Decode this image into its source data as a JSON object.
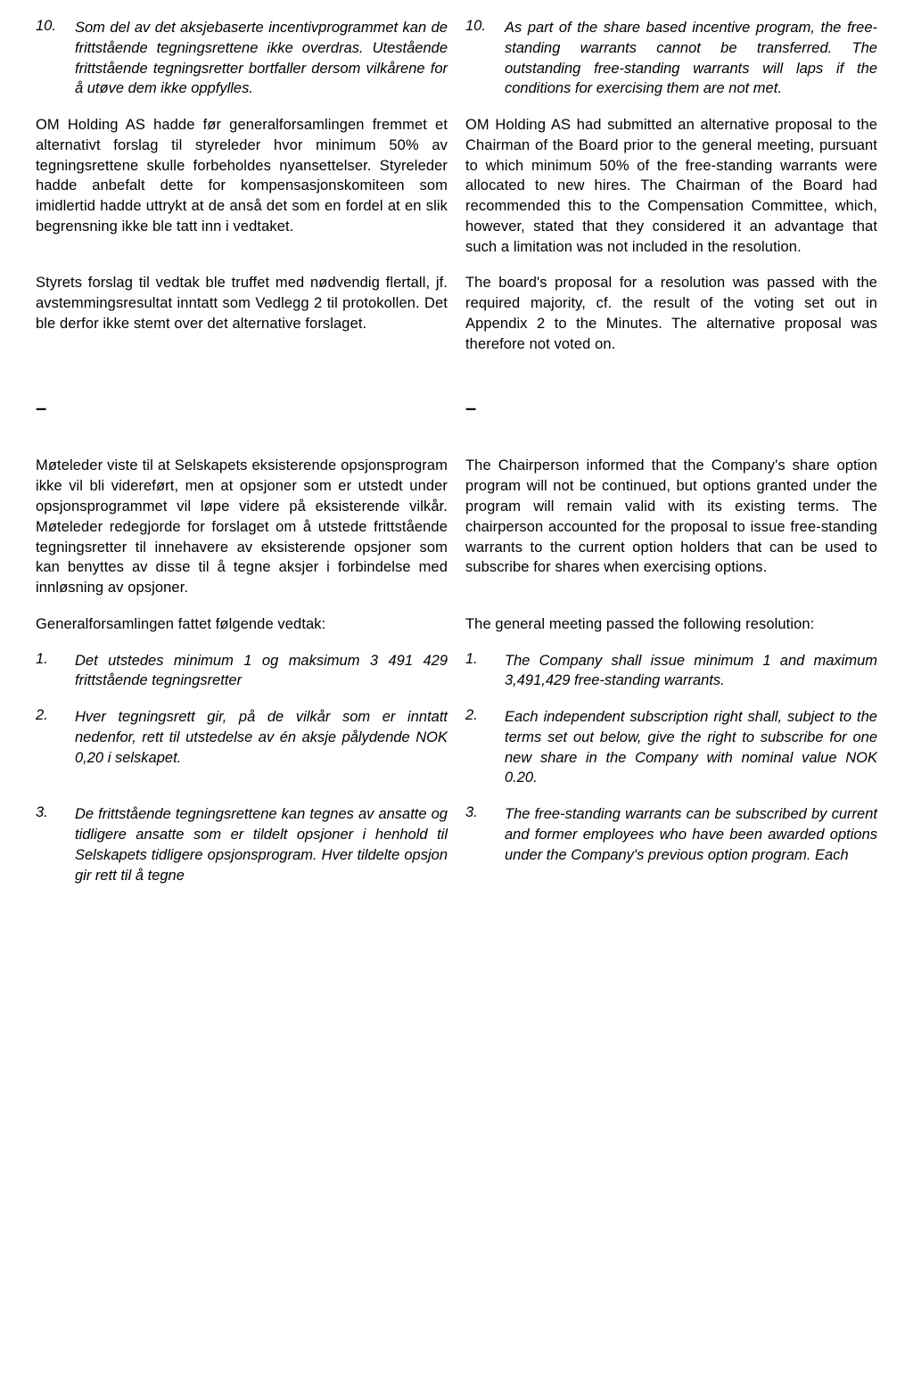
{
  "left": {
    "item10_num": "10.",
    "item10": "Som del av det aksjebaserte incentivprogrammet kan de frittstående tegningsrettene ikke overdras. Utestående frittstående tegningsretter bortfaller dersom vilkårene for å utøve dem ikke oppfylles.",
    "p1": "OM Holding AS hadde før generalforsamlingen fremmet et alternativt forslag til styreleder hvor minimum 50% av tegningsrettene skulle forbeholdes nyansettelser. Styreleder hadde anbefalt dette for kompensasjonskomiteen som imidlertid hadde uttrykt at de anså det som en fordel at en slik begrensning ikke ble tatt inn i vedtaket.",
    "p2": "Styrets forslag til vedtak ble truffet med nødvendig flertall, jf. avstemmingsresultat inntatt som Vedlegg 2 til protokollen. Det ble derfor ikke stemt over det alternative forslaget.",
    "dash": "–",
    "p3": "Møteleder viste til at Selskapets eksisterende opsjonsprogram ikke vil bli videreført, men at opsjoner som er utstedt under opsjonsprogrammet vil løpe videre på eksisterende vilkår. Møteleder redegjorde for forslaget om å utstede frittstående tegningsretter til innehavere av eksisterende opsjoner som kan benyttes av disse til å tegne aksjer i forbindelse med innløsning av opsjoner.",
    "p4": "Generalforsamlingen fattet følgende vedtak:",
    "item1_num": "1.",
    "item1": "Det utstedes minimum 1 og maksimum 3 491 429 frittstående tegningsretter",
    "item2_num": "2.",
    "item2": "Hver tegningsrett gir, på de vilkår som er inntatt nedenfor, rett til utstedelse av én aksje pålydende NOK 0,20 i selskapet.",
    "item3_num": "3.",
    "item3": "De frittstående tegningsrettene kan tegnes av ansatte og tidligere ansatte som er tildelt opsjoner i henhold til Selskapets tidligere opsjonsprogram. Hver tildelte opsjon gir rett til å tegne"
  },
  "right": {
    "item10_num": "10.",
    "item10": "As part of the share based incentive program, the free-standing warrants cannot be transferred. The outstanding free-standing warrants will laps if the conditions for exercising them are not met.",
    "p1": "OM Holding AS had submitted an alternative proposal to the Chairman of the Board prior to the general meeting, pursuant to which minimum 50% of the free-standing warrants were allocated to new hires. The Chairman of the Board had recommended this to the Compensation Committee, which, however, stated that they considered it an advantage that such a limitation was not included in the resolution.",
    "p2": "The board's proposal for a resolution was passed with the required majority, cf. the result of the voting set out in Appendix 2 to the Minutes. The alternative proposal was therefore not voted on.",
    "dash": "–",
    "p3": "The Chairperson informed that the Company's share option program will not be continued, but options granted under the program will remain valid with its existing terms. The chairperson accounted for the proposal to issue free-standing warrants to the current option holders that can be used to subscribe for shares when exercising options.",
    "p4": "The general meeting passed the following resolution:",
    "item1_num": "1.",
    "item1": "The Company shall issue minimum 1 and maximum 3,491,429 free-standing warrants.",
    "item2_num": "2.",
    "item2": "Each independent subscription right shall, subject to the terms set out below, give the right to subscribe for one new share in the Company with nominal value NOK 0.20.",
    "item3_num": "3.",
    "item3": "The free-standing warrants can be subscribed by current and former employees who have been awarded options under the Company's previous option program. Each"
  }
}
